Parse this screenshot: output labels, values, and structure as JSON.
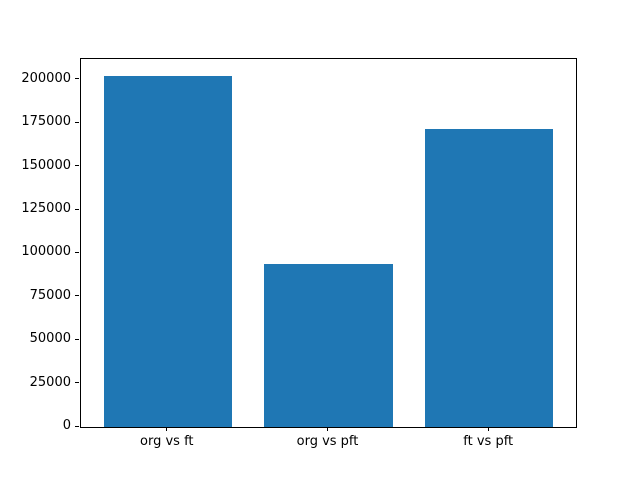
{
  "chart_data": {
    "type": "bar",
    "title": "",
    "xlabel": "",
    "ylabel": "",
    "categories": [
      "org vs ft",
      "org vs pft",
      "ft vs pft"
    ],
    "values": [
      202300,
      94100,
      171700
    ],
    "yticks": [
      0,
      25000,
      50000,
      75000,
      100000,
      125000,
      150000,
      175000,
      200000
    ],
    "ylim": [
      0,
      212100
    ],
    "bar_color": "#1f77b4",
    "axis_color": "#000000",
    "background_color": "#ffffff",
    "grid": false,
    "legend": null,
    "bar_width_fraction": 0.8
  }
}
